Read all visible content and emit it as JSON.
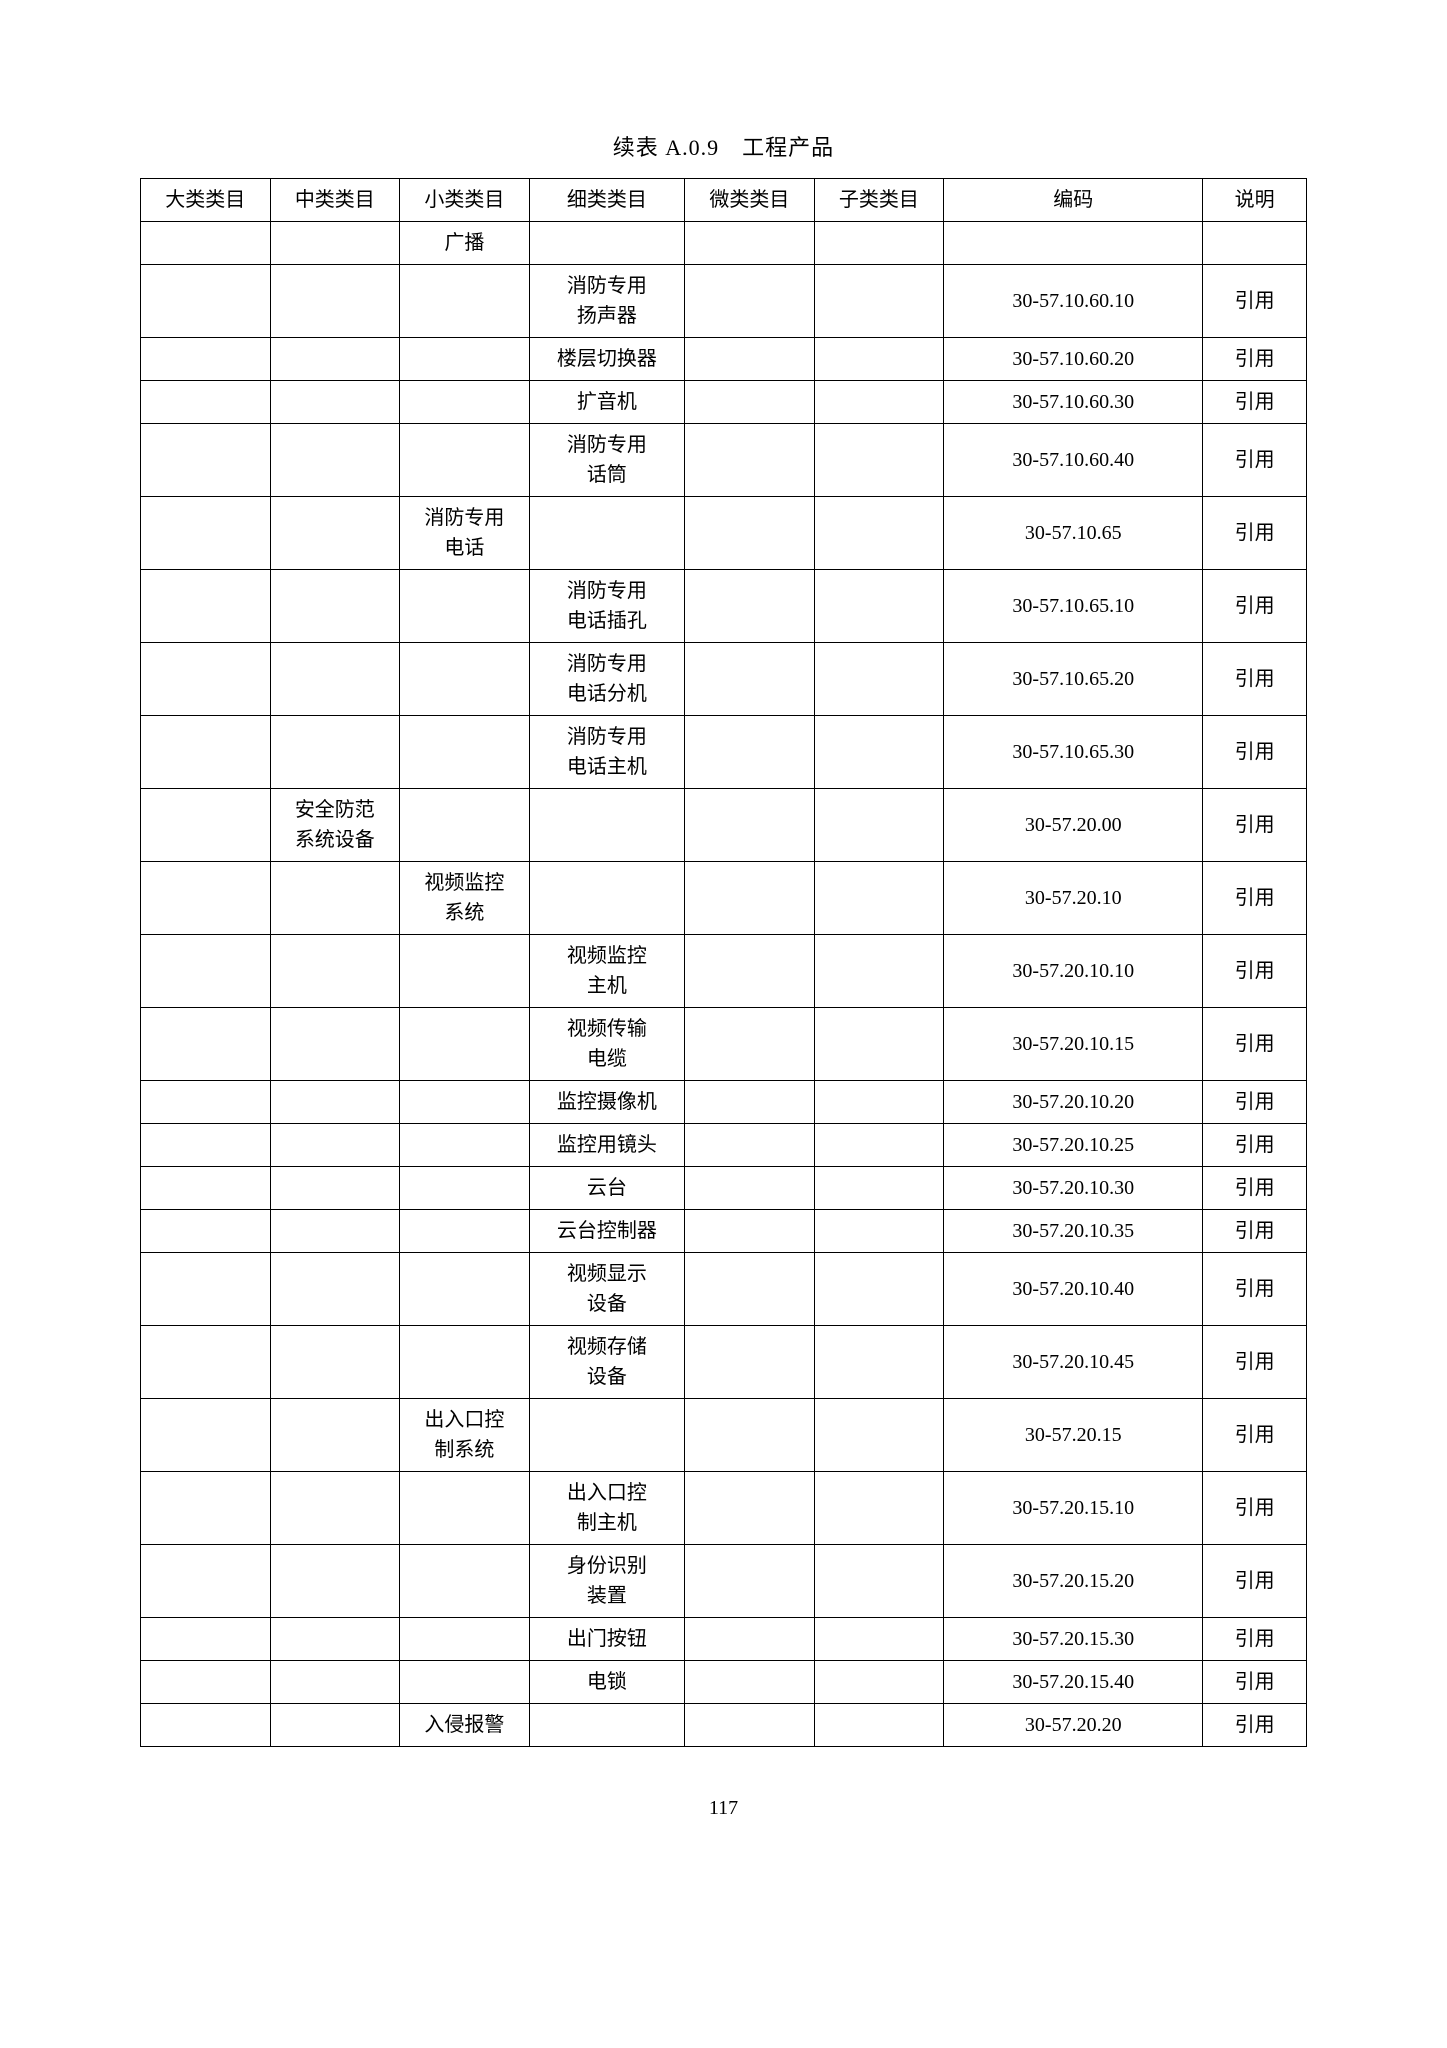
{
  "title": "续表 A.0.9　工程产品",
  "headers": [
    "大类类目",
    "中类类目",
    "小类类目",
    "细类类目",
    "微类类目",
    "子类类目",
    "编码",
    "说明"
  ],
  "page_number": "117",
  "rows": [
    [
      "",
      "",
      "广播",
      "",
      "",
      "",
      "",
      ""
    ],
    [
      "",
      "",
      "",
      "消防专用扬声器",
      "",
      "",
      "30-57.10.60.10",
      "引用"
    ],
    [
      "",
      "",
      "",
      "楼层切换器",
      "",
      "",
      "30-57.10.60.20",
      "引用"
    ],
    [
      "",
      "",
      "",
      "扩音机",
      "",
      "",
      "30-57.10.60.30",
      "引用"
    ],
    [
      "",
      "",
      "",
      "消防专用话筒",
      "",
      "",
      "30-57.10.60.40",
      "引用"
    ],
    [
      "",
      "",
      "消防专用电话",
      "",
      "",
      "",
      "30-57.10.65",
      "引用"
    ],
    [
      "",
      "",
      "",
      "消防专用电话插孔",
      "",
      "",
      "30-57.10.65.10",
      "引用"
    ],
    [
      "",
      "",
      "",
      "消防专用电话分机",
      "",
      "",
      "30-57.10.65.20",
      "引用"
    ],
    [
      "",
      "",
      "",
      "消防专用电话主机",
      "",
      "",
      "30-57.10.65.30",
      "引用"
    ],
    [
      "",
      "安全防范系统设备",
      "",
      "",
      "",
      "",
      "30-57.20.00",
      "引用"
    ],
    [
      "",
      "",
      "视频监控系统",
      "",
      "",
      "",
      "30-57.20.10",
      "引用"
    ],
    [
      "",
      "",
      "",
      "视频监控主机",
      "",
      "",
      "30-57.20.10.10",
      "引用"
    ],
    [
      "",
      "",
      "",
      "视频传输电缆",
      "",
      "",
      "30-57.20.10.15",
      "引用"
    ],
    [
      "",
      "",
      "",
      "监控摄像机",
      "",
      "",
      "30-57.20.10.20",
      "引用"
    ],
    [
      "",
      "",
      "",
      "监控用镜头",
      "",
      "",
      "30-57.20.10.25",
      "引用"
    ],
    [
      "",
      "",
      "",
      "云台",
      "",
      "",
      "30-57.20.10.30",
      "引用"
    ],
    [
      "",
      "",
      "",
      "云台控制器",
      "",
      "",
      "30-57.20.10.35",
      "引用"
    ],
    [
      "",
      "",
      "",
      "视频显示设备",
      "",
      "",
      "30-57.20.10.40",
      "引用"
    ],
    [
      "",
      "",
      "",
      "视频存储设备",
      "",
      "",
      "30-57.20.10.45",
      "引用"
    ],
    [
      "",
      "",
      "出入口控制系统",
      "",
      "",
      "",
      "30-57.20.15",
      "引用"
    ],
    [
      "",
      "",
      "",
      "出入口控制主机",
      "",
      "",
      "30-57.20.15.10",
      "引用"
    ],
    [
      "",
      "",
      "",
      "身份识别装置",
      "",
      "",
      "30-57.20.15.20",
      "引用"
    ],
    [
      "",
      "",
      "",
      "出门按钮",
      "",
      "",
      "30-57.20.15.30",
      "引用"
    ],
    [
      "",
      "",
      "",
      "电锁",
      "",
      "",
      "30-57.20.15.40",
      "引用"
    ],
    [
      "",
      "",
      "入侵报警",
      "",
      "",
      "",
      "30-57.20.20",
      "引用"
    ]
  ],
  "wrap_cells": {
    "1": {
      "3": true
    },
    "4": {
      "3": true
    },
    "5": {
      "2": true
    },
    "6": {
      "3": true
    },
    "7": {
      "3": true
    },
    "8": {
      "3": true
    },
    "9": {
      "1": true
    },
    "10": {
      "2": true
    },
    "11": {
      "3": true
    },
    "12": {
      "3": true
    },
    "17": {
      "3": true
    },
    "18": {
      "3": true
    },
    "19": {
      "2": true
    },
    "20": {
      "3": true
    },
    "21": {
      "3": true
    }
  }
}
